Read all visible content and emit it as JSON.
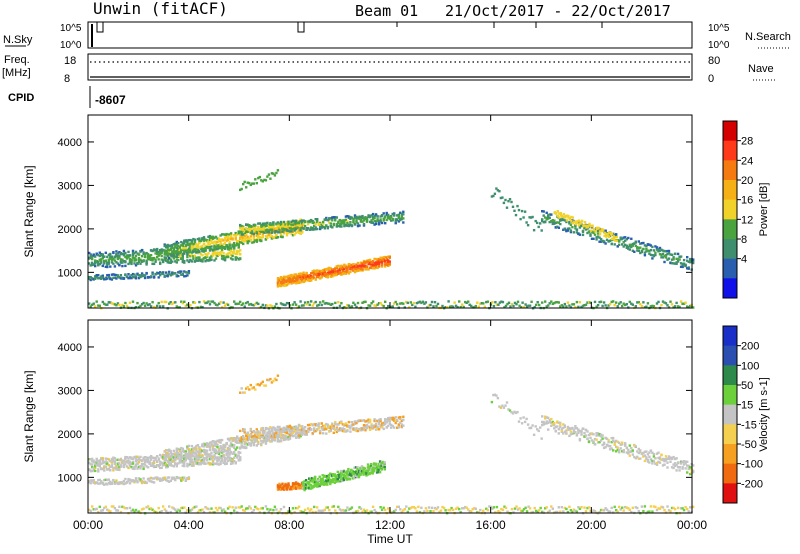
{
  "header": {
    "station": "Unwin (fitACF)",
    "beam": "Beam 01",
    "dates": "21/Oct/2017 - 22/Oct/2017"
  },
  "strips": {
    "nsky_label": "N.Sky",
    "nsky_ticks": [
      "10^5",
      "10^0"
    ],
    "nsearch_label": "N.Search",
    "freq_label_1": "Freq.",
    "freq_label_2": "[MHz]",
    "freq_ticks": [
      "18",
      "8"
    ],
    "nave_ticks": [
      "80",
      "0"
    ],
    "nave_label": "Nave",
    "cpid_label": "CPID",
    "cpid_value": "-8607"
  },
  "chart_data": [
    {
      "type": "heatmap",
      "panel": "power",
      "ylabel": "Slant Range [km]",
      "xlabel": "",
      "ylim": [
        180,
        4620
      ],
      "yticks": [
        1000,
        2000,
        3000,
        4000
      ],
      "colorbar": {
        "label": "Power [dB]",
        "ticks": [
          "28",
          "24",
          "20",
          "16",
          "12",
          "8",
          "4"
        ],
        "colors": [
          "#d40000",
          "#ff3a1a",
          "#f57a10",
          "#f5b015",
          "#f0d22a",
          "#4aa33f",
          "#3f8f6e",
          "#2a5fb0",
          "#1010e8"
        ]
      }
    },
    {
      "type": "heatmap",
      "panel": "velocity",
      "ylabel": "Slant Range [km]",
      "xlabel": "Time UT",
      "ylim": [
        180,
        4620
      ],
      "yticks": [
        1000,
        2000,
        3000,
        4000
      ],
      "xticks": [
        "00:00",
        "04:00",
        "08:00",
        "12:00",
        "16:00",
        "20:00",
        "00:00"
      ],
      "colorbar": {
        "label": "Velocity [m s-1]",
        "ticks": [
          "200",
          "100",
          "50",
          "15",
          "-15",
          "-50",
          "-100",
          "-200"
        ],
        "colors": [
          "#1a2fc8",
          "#2a4fb0",
          "#2e8a4a",
          "#6cd03a",
          "#c4c4c4",
          "#f5d050",
          "#f5a020",
          "#f06a10",
          "#e01010"
        ]
      }
    }
  ]
}
